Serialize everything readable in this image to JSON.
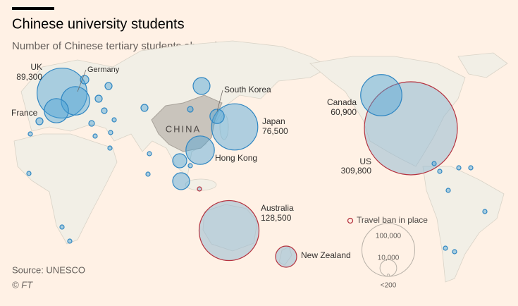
{
  "header": {
    "title": "Chinese university students",
    "subtitle": "Number of Chinese tertiary students abroad"
  },
  "map_label": "CHINA",
  "bubbles": [
    {
      "name": "UK",
      "value": 89300,
      "value_label": "89,300",
      "travel_ban": false
    },
    {
      "name": "Germany",
      "value": 29000,
      "travel_ban": false
    },
    {
      "name": "France",
      "value": 21000,
      "travel_ban": false
    },
    {
      "name": "South Korea",
      "value": 7300,
      "travel_ban": false
    },
    {
      "name": "Japan",
      "value": 76500,
      "value_label": "76,500",
      "travel_ban": false
    },
    {
      "name": "Hong Kong",
      "value": 29000,
      "travel_ban": false
    },
    {
      "name": "Canada",
      "value": 60900,
      "value_label": "60,900",
      "travel_ban": false
    },
    {
      "name": "US",
      "value": 309800,
      "value_label": "309,800",
      "travel_ban": true
    },
    {
      "name": "Australia",
      "value": 128500,
      "value_label": "128,500",
      "travel_ban": true
    },
    {
      "name": "New Zealand",
      "value": 16000,
      "travel_ban": true
    },
    {
      "value": 10240,
      "travel_ban": false
    },
    {
      "value": 7110,
      "travel_ban": false
    },
    {
      "value": 10240,
      "travel_ban": false
    },
    {
      "value": 640,
      "travel_ban": true
    },
    {
      "value": 1780,
      "travel_ban": false
    },
    {
      "value": 1140,
      "travel_ban": false
    },
    {
      "value": 1780,
      "travel_ban": false
    },
    {
      "value": 1780,
      "travel_ban": false
    },
    {
      "value": 1140,
      "travel_ban": false
    },
    {
      "value": 640,
      "travel_ban": false
    },
    {
      "value": 640,
      "travel_ban": false
    },
    {
      "value": 640,
      "travel_ban": false
    },
    {
      "value": 640,
      "travel_ban": false
    },
    {
      "value": 640,
      "travel_ban": false
    },
    {
      "value": 640,
      "travel_ban": false
    },
    {
      "value": 640,
      "travel_ban": false
    },
    {
      "value": 640,
      "travel_ban": false
    },
    {
      "value": 1780,
      "travel_ban": false
    },
    {
      "value": 640,
      "travel_ban": false
    },
    {
      "value": 640,
      "travel_ban": false
    },
    {
      "value": 640,
      "travel_ban": false
    },
    {
      "value": 640,
      "travel_ban": false
    },
    {
      "value": 640,
      "travel_ban": false
    },
    {
      "value": 640,
      "travel_ban": false
    },
    {
      "value": 640,
      "travel_ban": false
    },
    {
      "value": 640,
      "travel_ban": false
    },
    {
      "value": 640,
      "travel_ban": false
    },
    {
      "value": 2560,
      "travel_ban": false
    },
    {
      "value": 1140,
      "travel_ban": false
    },
    {
      "value": 640,
      "travel_ban": false
    },
    {
      "value": 640,
      "travel_ban": false
    }
  ],
  "legend": {
    "ban_label": "Travel ban in place",
    "sizes": [
      {
        "value": 100000,
        "label": "100,000"
      },
      {
        "value": 10000,
        "label": "10,000"
      },
      {
        "value": 200,
        "label": "<200"
      }
    ]
  },
  "footer": {
    "source": "Source: UNESCO",
    "credit": "© FT"
  }
}
